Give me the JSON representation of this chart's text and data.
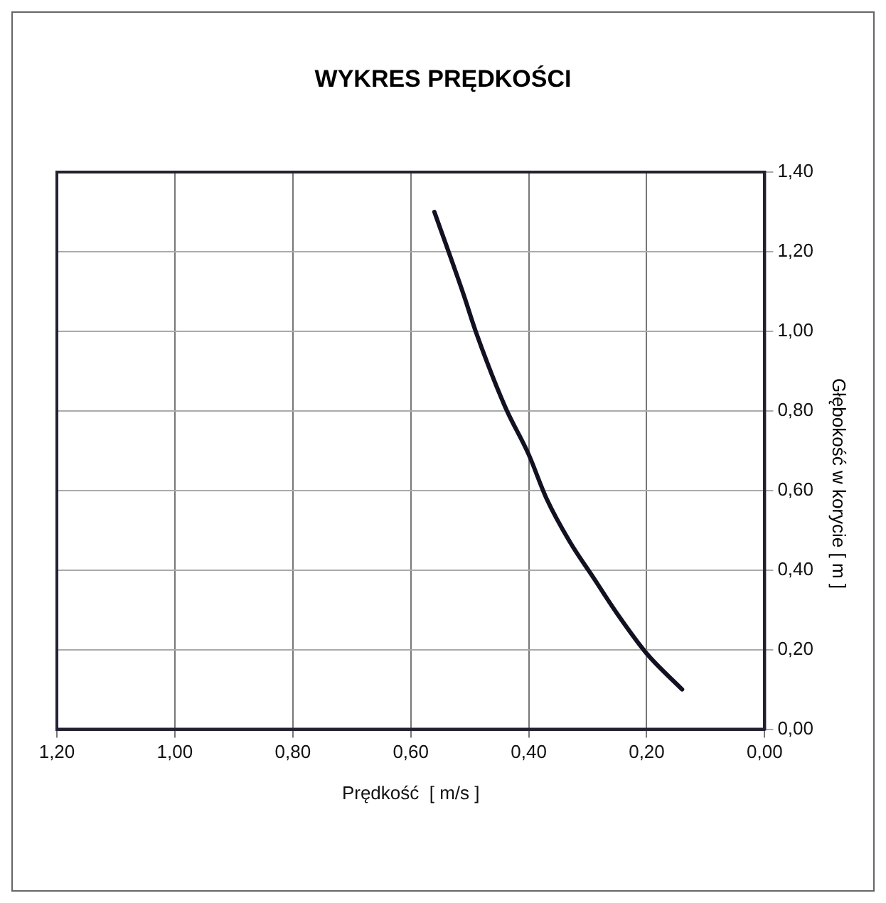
{
  "chart_data": {
    "type": "line",
    "title": "WYKRES PRĘDKOŚCI",
    "xlabel": "Prędkość  [ m/s ]",
    "ylabel": "Głębokość w korycie [ m ]",
    "x": [
      0.56,
      0.51,
      0.49,
      0.44,
      0.4,
      0.37,
      0.33,
      0.29,
      0.25,
      0.2,
      0.14
    ],
    "series": [
      {
        "color": "#111122",
        "values": [
          1.3,
          1.09,
          1.0,
          0.81,
          0.69,
          0.58,
          0.47,
          0.38,
          0.29,
          0.19,
          0.1
        ]
      }
    ],
    "xlim": [
      1.2,
      0
    ],
    "xticks": [
      {
        "value": 1.2,
        "label": "1,20"
      },
      {
        "value": 1,
        "label": "1,00"
      },
      {
        "value": 0.8,
        "label": "0,80"
      },
      {
        "value": 0.6,
        "label": "0,60"
      },
      {
        "value": 0.4,
        "label": "0,40"
      },
      {
        "value": 0.2,
        "label": "0,20"
      },
      {
        "value": 0,
        "label": "0,00"
      }
    ],
    "ylim": [
      0,
      1.4
    ],
    "yticks": [
      {
        "value": 0,
        "label": "0,00"
      },
      {
        "value": 0.2,
        "label": "0,20"
      },
      {
        "value": 0.4,
        "label": "0,40"
      },
      {
        "value": 0.6,
        "label": "0,60"
      },
      {
        "value": 0.8,
        "label": "0,80"
      },
      {
        "value": 1,
        "label": "1,00"
      },
      {
        "value": 1.2,
        "label": "1,20"
      },
      {
        "value": 1.4,
        "label": "1,40"
      }
    ],
    "grid": true,
    "legend": false,
    "marker": "none",
    "line_style": "solid"
  }
}
